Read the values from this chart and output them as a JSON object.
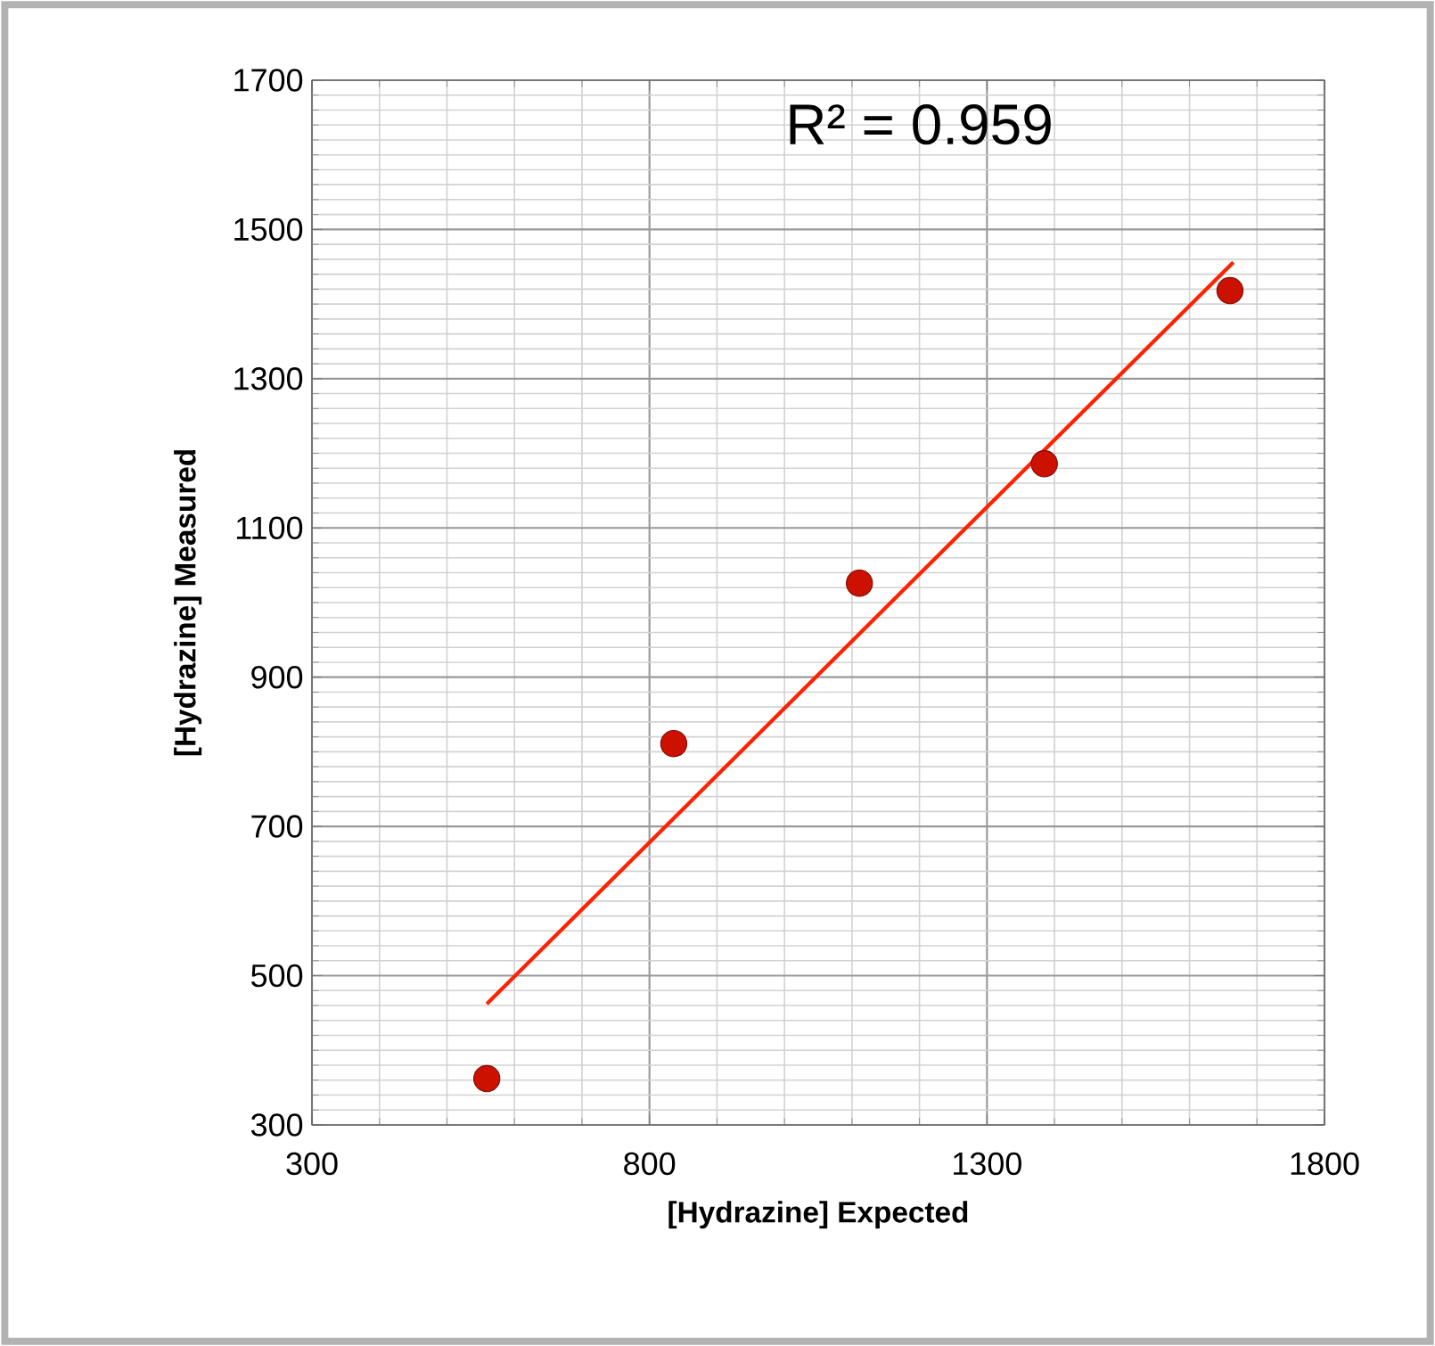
{
  "chart_data": {
    "type": "scatter",
    "xlabel": "[Hydrazine] Expected",
    "ylabel": "[Hydrazine] Measured",
    "annotations": [
      "R² = 0.959"
    ],
    "xlim": [
      300,
      1800
    ],
    "xticks": [
      300,
      800,
      1300,
      1800
    ],
    "ylim": [
      300,
      1700
    ],
    "yticks": [
      300,
      500,
      700,
      900,
      1100,
      1300,
      1500,
      1700
    ],
    "grid": true,
    "series": [
      {
        "color": "#cc1100",
        "marker": "circle",
        "x": [
          559,
          836,
          1111,
          1385,
          1660
        ],
        "values": [
          362,
          811,
          1026,
          1186,
          1418
        ]
      },
      {
        "type": "line",
        "color": "#ff2200",
        "line_style": "solid",
        "marker": "none",
        "x": [
          559,
          1665
        ],
        "values": [
          462,
          1456
        ]
      }
    ]
  }
}
